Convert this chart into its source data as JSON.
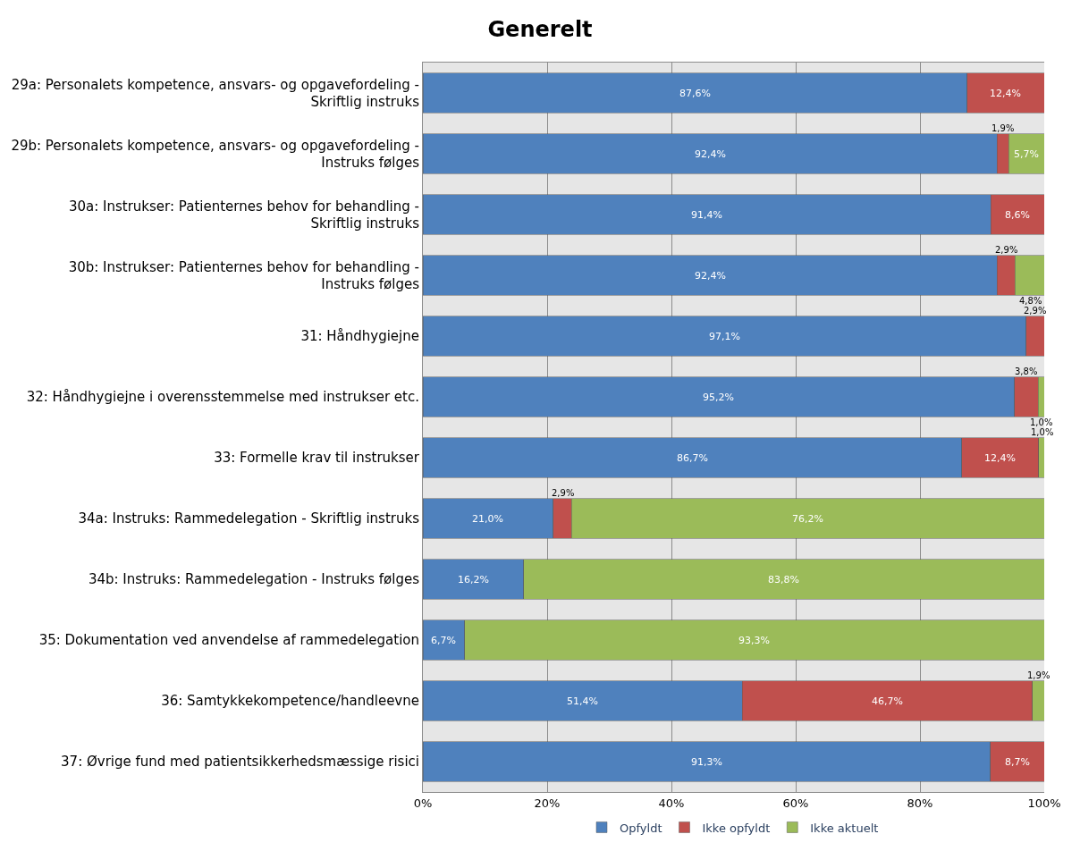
{
  "chart_data": {
    "type": "bar",
    "orientation": "horizontal",
    "stacked": true,
    "title": "Generelt",
    "categories": [
      "29a: Personalets kompetence, ansvars- og opgavefordeling - Skriftlig instruks",
      "29b: Personalets kompetence, ansvars- og opgavefordeling - Instruks følges",
      "30a: Instrukser: Patienternes behov for behandling - Skriftlig instruks",
      "30b: Instrukser: Patienternes behov for behandling - Instruks følges",
      "31: Håndhygiejne",
      "32: Håndhygiejne i overensstemmelse med instrukser etc.",
      "33: Formelle krav til instrukser",
      "34a: Instruks: Rammedelegation - Skriftlig instruks",
      "34b: Instruks: Rammedelegation - Instruks følges",
      "35: Dokumentation ved anvendelse af rammedelegation",
      "36: Samtykkekompetence/handleevne",
      "37: Øvrige fund med patientsikkerhedsmæssige risici"
    ],
    "series": [
      {
        "name": "Opfyldt",
        "color": "#4f81bd",
        "values": [
          87.6,
          92.4,
          91.4,
          92.4,
          97.1,
          95.2,
          86.7,
          21.0,
          16.2,
          6.7,
          51.4,
          91.3
        ],
        "value_labels": [
          "87,6%",
          "92,4%",
          "91,4%",
          "92,4%",
          "97,1%",
          "95,2%",
          "86,7%",
          "21,0%",
          "16,2%",
          "6,7%",
          "51,4%",
          "91,3%"
        ]
      },
      {
        "name": "Ikke opfyldt",
        "color": "#c0504d",
        "values": [
          12.4,
          1.9,
          8.6,
          2.9,
          2.9,
          3.8,
          12.4,
          2.9,
          null,
          null,
          46.7,
          8.7
        ],
        "value_labels": [
          "12,4%",
          "1,9%",
          "8,6%",
          "2,9%",
          "2,9%",
          "3,8%",
          "12,4%",
          "2,9%",
          null,
          null,
          "46,7%",
          "8,7%"
        ]
      },
      {
        "name": "Ikke aktuelt",
        "color": "#9bbb59",
        "values": [
          null,
          5.7,
          null,
          4.8,
          null,
          1.0,
          1.0,
          76.2,
          83.8,
          93.3,
          1.9,
          null
        ],
        "value_labels": [
          null,
          "5,7%",
          null,
          "4,8%",
          null,
          "1,0%",
          "1,0%",
          "76,2%",
          "83,8%",
          "93,3%",
          "1,9%",
          null
        ]
      }
    ],
    "xlim": [
      0,
      100
    ],
    "xticks": [
      {
        "value": 0,
        "label": "0%"
      },
      {
        "value": 20,
        "label": "20%"
      },
      {
        "value": 40,
        "label": "40%"
      },
      {
        "value": 60,
        "label": "60%"
      },
      {
        "value": 80,
        "label": "80%"
      },
      {
        "value": 100,
        "label": "100%"
      }
    ],
    "grid": "x",
    "legend": "bottom"
  }
}
